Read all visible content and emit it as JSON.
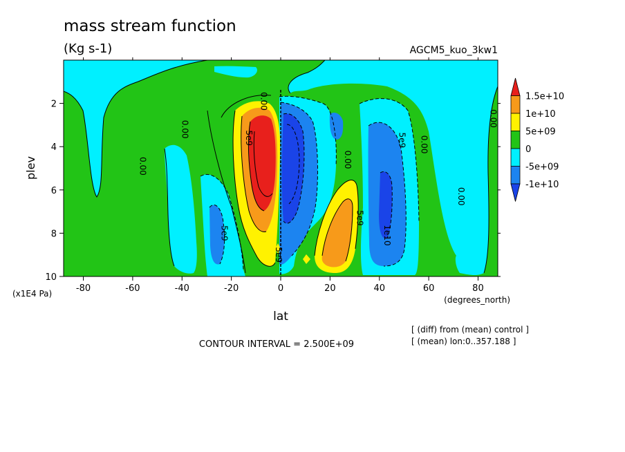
{
  "chart_data": {
    "type": "heatmap",
    "title": "mass stream function",
    "subtitle": "(Kg s-1)",
    "run_label": "AGCM5_kuo_3kw1",
    "xlabel": "lat",
    "x_units": "(degrees_north)",
    "ylabel": "plev",
    "y_units": "(x1E4 Pa)",
    "xlim": [
      -88,
      88
    ],
    "ylim": [
      10,
      0
    ],
    "x_ticks": [
      -80,
      -60,
      -40,
      -20,
      0,
      20,
      40,
      60,
      80
    ],
    "x_tick_labels": [
      "-80",
      "-60",
      "-40",
      "-20",
      "0",
      "20",
      "40",
      "60",
      "80"
    ],
    "y_ticks": [
      2,
      4,
      6,
      8,
      10
    ],
    "y_tick_labels": [
      "2",
      "4",
      "6",
      "8",
      "10"
    ],
    "contour_interval": "CONTOUR INTERVAL = 2.500E+09",
    "notes": [
      "[ (diff) from (mean) control ]",
      "[ (mean) lon:0..357.188 ]"
    ],
    "colorbar": {
      "labels": [
        "1.5e+10",
        "1e+10",
        "5e+09",
        "0",
        "-5e+09",
        "-1e+10"
      ],
      "colors": [
        "#e8201c",
        "#f79a1a",
        "#fff200",
        "#22c416",
        "#00f0ff",
        "#1c84f0",
        "#1a44e8"
      ]
    },
    "contour_labels": [
      {
        "text": "0.00",
        "lat": -57,
        "plev": 4.9
      },
      {
        "text": "0.00",
        "lat": -40,
        "plev": 3.2
      },
      {
        "text": "0.00",
        "lat": -8,
        "plev": 1.9
      },
      {
        "text": "5e9",
        "lat": -14,
        "plev": 3.6
      },
      {
        "text": "5e9",
        "lat": -24,
        "plev": 8.0
      },
      {
        "text": "5e9",
        "lat": -2,
        "plev": 9.0
      },
      {
        "text": "0.00",
        "lat": 26,
        "plev": 4.6
      },
      {
        "text": "5e9",
        "lat": 31,
        "plev": 7.3
      },
      {
        "text": "5e9",
        "lat": 48,
        "plev": 3.7
      },
      {
        "text": "1e10",
        "lat": 42,
        "plev": 8.1
      },
      {
        "text": "0.00",
        "lat": 57,
        "plev": 3.9
      },
      {
        "text": "0.00",
        "lat": 72,
        "plev": 6.3
      },
      {
        "text": "0.00",
        "lat": 85,
        "plev": 2.7
      }
    ],
    "fields": {
      "red": [
        {
          "name": "southern-cell-max",
          "lat": [
            -11,
            -3
          ],
          "plev": [
            2.5,
            6.7
          ]
        }
      ],
      "orange": [
        {
          "name": "southern-cell",
          "lat": [
            -14,
            -2
          ],
          "plev": [
            2.3,
            7.6
          ]
        },
        {
          "name": "northern-cell",
          "lat": [
            18,
            30
          ],
          "plev": [
            5.6,
            9.6
          ]
        }
      ],
      "yellow": [
        {
          "name": "southern-cell-edge",
          "lat": [
            -17,
            -1
          ],
          "plev": [
            2.2,
            8.8
          ]
        },
        {
          "name": "northern-cell-edge",
          "lat": [
            14,
            32
          ],
          "plev": [
            4.9,
            9.7
          ]
        }
      ],
      "blue": [
        {
          "name": "equatorial-cell",
          "lat": [
            1,
            15
          ],
          "plev": [
            2.4,
            9.0
          ]
        },
        {
          "name": "midlat-cell",
          "lat": [
            39,
            48
          ],
          "plev": [
            3.5,
            9.5
          ]
        }
      ],
      "dark_blue": [
        {
          "name": "equatorial-core",
          "lat": [
            3,
            10
          ],
          "plev": [
            3.2,
            7.8
          ]
        }
      ]
    }
  }
}
